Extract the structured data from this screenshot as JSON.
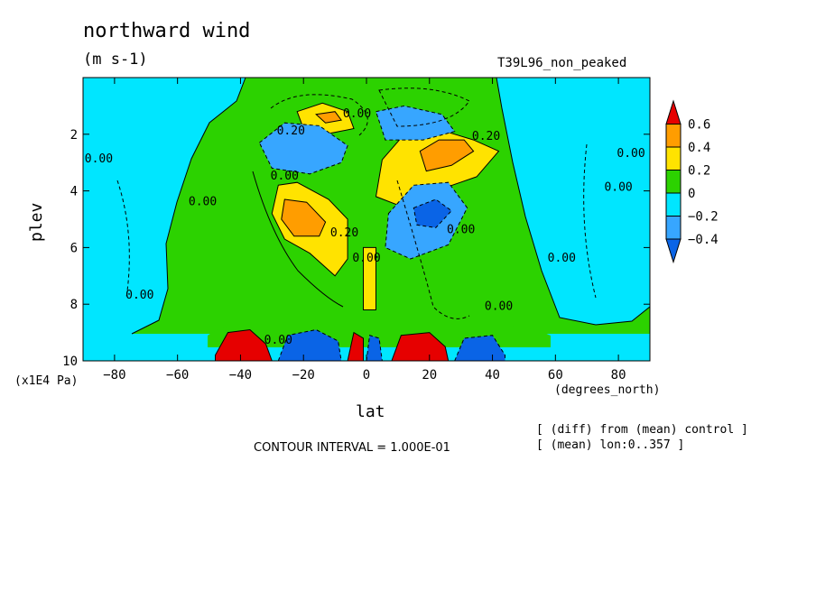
{
  "figure": {
    "title": "northward wind",
    "units": "(m s-1)",
    "run_label": "T39L96_non_peaked",
    "contour_interval": "CONTOUR INTERVAL = 1.000E-01",
    "note_diff": "[ (diff) from (mean) control ]",
    "note_mean": "[ (mean) lon:0..357 ]"
  },
  "chart_data": {
    "type": "heatmap",
    "title": "northward wind",
    "xlabel": "lat",
    "ylabel": "plev",
    "xunit": "(degrees_north)",
    "yunit": "(x1E4 Pa)",
    "xlim": [
      -90,
      90
    ],
    "ylim": [
      10,
      0
    ],
    "x_ticks": [
      -80,
      -60,
      -40,
      -20,
      0,
      20,
      40,
      60,
      80
    ],
    "y_ticks": [
      2,
      4,
      6,
      8,
      10
    ],
    "colorbar": {
      "levels": [
        "-0.4",
        "-0.2",
        "0",
        "0.2",
        "0.4",
        "0.6"
      ],
      "bounds": [
        -0.6,
        -0.4,
        -0.2,
        0,
        0.2,
        0.4,
        0.6,
        0.8
      ],
      "colors": [
        "#0a64e6",
        "#37a6ff",
        "#00e6ff",
        "#2cd200",
        "#ffe300",
        "#ff9d00",
        "#e60000"
      ]
    },
    "contour_labels": [
      {
        "text": "0.00",
        "x": -85,
        "y": 3.0
      },
      {
        "text": "0.00",
        "x": -52,
        "y": 4.5
      },
      {
        "text": "0.00",
        "x": -72,
        "y": 7.8
      },
      {
        "text": "0.20",
        "x": -24,
        "y": 2.0
      },
      {
        "text": "0.00",
        "x": -26,
        "y": 3.6
      },
      {
        "text": "0.20",
        "x": -7,
        "y": 5.6
      },
      {
        "text": "0.00",
        "x": -3,
        "y": 1.4
      },
      {
        "text": "0.00",
        "x": 0,
        "y": 6.5
      },
      {
        "text": "0.20",
        "x": 38,
        "y": 2.2
      },
      {
        "text": "0.00",
        "x": 30,
        "y": 5.5
      },
      {
        "text": "0.00",
        "x": 62,
        "y": 6.5
      },
      {
        "text": "0.00",
        "x": 80,
        "y": 4.0
      },
      {
        "text": "0.00",
        "x": 84,
        "y": 2.8
      },
      {
        "text": "0.00",
        "x": 42,
        "y": 8.2
      },
      {
        "text": "0.00",
        "x": -28,
        "y": 9.4
      }
    ],
    "fields": [
      {
        "name": "northern-mid-positive",
        "value": 0.3,
        "points": [
          [
            5,
            2.9
          ],
          [
            12,
            2.0
          ],
          [
            22,
            1.8
          ],
          [
            34,
            2.2
          ],
          [
            42,
            2.6
          ],
          [
            35,
            3.5
          ],
          [
            22,
            4.0
          ],
          [
            10,
            4.5
          ],
          [
            3,
            4.2
          ]
        ]
      },
      {
        "name": "northern-mid-orange",
        "value": 0.45,
        "points": [
          [
            17,
            2.6
          ],
          [
            23,
            2.2
          ],
          [
            31,
            2.2
          ],
          [
            34,
            2.6
          ],
          [
            27,
            3.1
          ],
          [
            19,
            3.3
          ]
        ]
      },
      {
        "name": "southern-mid-positive",
        "value": 0.3,
        "points": [
          [
            -28,
            3.8
          ],
          [
            -22,
            3.7
          ],
          [
            -12,
            4.3
          ],
          [
            -6,
            5.0
          ],
          [
            -6,
            6.4
          ],
          [
            -10,
            7.0
          ],
          [
            -18,
            6.2
          ],
          [
            -26,
            5.7
          ],
          [
            -30,
            4.8
          ]
        ]
      },
      {
        "name": "southern-mid-orange",
        "value": 0.45,
        "points": [
          [
            -26,
            4.3
          ],
          [
            -19,
            4.4
          ],
          [
            -13,
            5.1
          ],
          [
            -15,
            5.6
          ],
          [
            -23,
            5.6
          ],
          [
            -27,
            5.0
          ]
        ]
      },
      {
        "name": "upper-left-positive",
        "value": 0.3,
        "points": [
          [
            -22,
            1.2
          ],
          [
            -14,
            0.9
          ],
          [
            -6,
            1.2
          ],
          [
            -4,
            1.8
          ],
          [
            -13,
            2.0
          ],
          [
            -20,
            1.8
          ]
        ]
      },
      {
        "name": "upper-left-orange",
        "value": 0.45,
        "points": [
          [
            -16,
            1.3
          ],
          [
            -10,
            1.2
          ],
          [
            -8,
            1.5
          ],
          [
            -13,
            1.6
          ]
        ]
      },
      {
        "name": "equator-positive",
        "value": 0.3,
        "points": [
          [
            -1,
            6.0
          ],
          [
            3,
            6.0
          ],
          [
            3,
            8.2
          ],
          [
            -1,
            8.2
          ]
        ]
      },
      {
        "name": "left-negative",
        "value": -0.3,
        "points": [
          [
            -34,
            2.3
          ],
          [
            -26,
            1.6
          ],
          [
            -15,
            1.7
          ],
          [
            -6,
            2.4
          ],
          [
            -8,
            3.0
          ],
          [
            -18,
            3.4
          ],
          [
            -30,
            3.2
          ]
        ]
      },
      {
        "name": "right-negative",
        "value": -0.3,
        "points": [
          [
            3,
            1.2
          ],
          [
            12,
            1.0
          ],
          [
            24,
            1.3
          ],
          [
            28,
            1.9
          ],
          [
            18,
            2.2
          ],
          [
            6,
            2.2
          ]
        ]
      },
      {
        "name": "right-lower-negative",
        "value": -0.3,
        "points": [
          [
            7,
            4.8
          ],
          [
            15,
            3.8
          ],
          [
            26,
            3.7
          ],
          [
            32,
            4.6
          ],
          [
            26,
            5.9
          ],
          [
            14,
            6.4
          ],
          [
            6,
            6.0
          ]
        ]
      },
      {
        "name": "right-lower-deep",
        "value": -0.45,
        "points": [
          [
            15,
            4.6
          ],
          [
            22,
            4.3
          ],
          [
            27,
            4.7
          ],
          [
            22,
            5.3
          ],
          [
            16,
            5.2
          ]
        ]
      },
      {
        "name": "near-surface-red-left",
        "value": 0.7,
        "points": [
          [
            -48,
            9.8
          ],
          [
            -44,
            9.0
          ],
          [
            -37,
            8.9
          ],
          [
            -32,
            9.4
          ],
          [
            -30,
            10
          ],
          [
            -48,
            10
          ]
        ]
      },
      {
        "name": "near-surface-blue-left",
        "value": -0.45,
        "points": [
          [
            -28,
            10
          ],
          [
            -25,
            9.1
          ],
          [
            -16,
            8.9
          ],
          [
            -9,
            9.3
          ],
          [
            -8,
            10
          ]
        ]
      },
      {
        "name": "near-surface-red-eq",
        "value": 0.7,
        "points": [
          [
            -6,
            10
          ],
          [
            -4,
            9.0
          ],
          [
            -1,
            9.2
          ],
          [
            -1,
            10
          ]
        ]
      },
      {
        "name": "near-surface-blue-eq",
        "value": -0.45,
        "points": [
          [
            0,
            10
          ],
          [
            1,
            9.1
          ],
          [
            4,
            9.2
          ],
          [
            5,
            10
          ]
        ]
      },
      {
        "name": "near-surface-red-right",
        "value": 0.7,
        "points": [
          [
            8,
            10
          ],
          [
            11,
            9.1
          ],
          [
            20,
            9.0
          ],
          [
            25,
            9.5
          ],
          [
            26,
            10
          ]
        ]
      },
      {
        "name": "near-surface-blue-right",
        "value": -0.45,
        "points": [
          [
            28,
            10
          ],
          [
            31,
            9.2
          ],
          [
            40,
            9.1
          ],
          [
            44,
            9.8
          ],
          [
            44,
            10
          ]
        ]
      }
    ]
  }
}
